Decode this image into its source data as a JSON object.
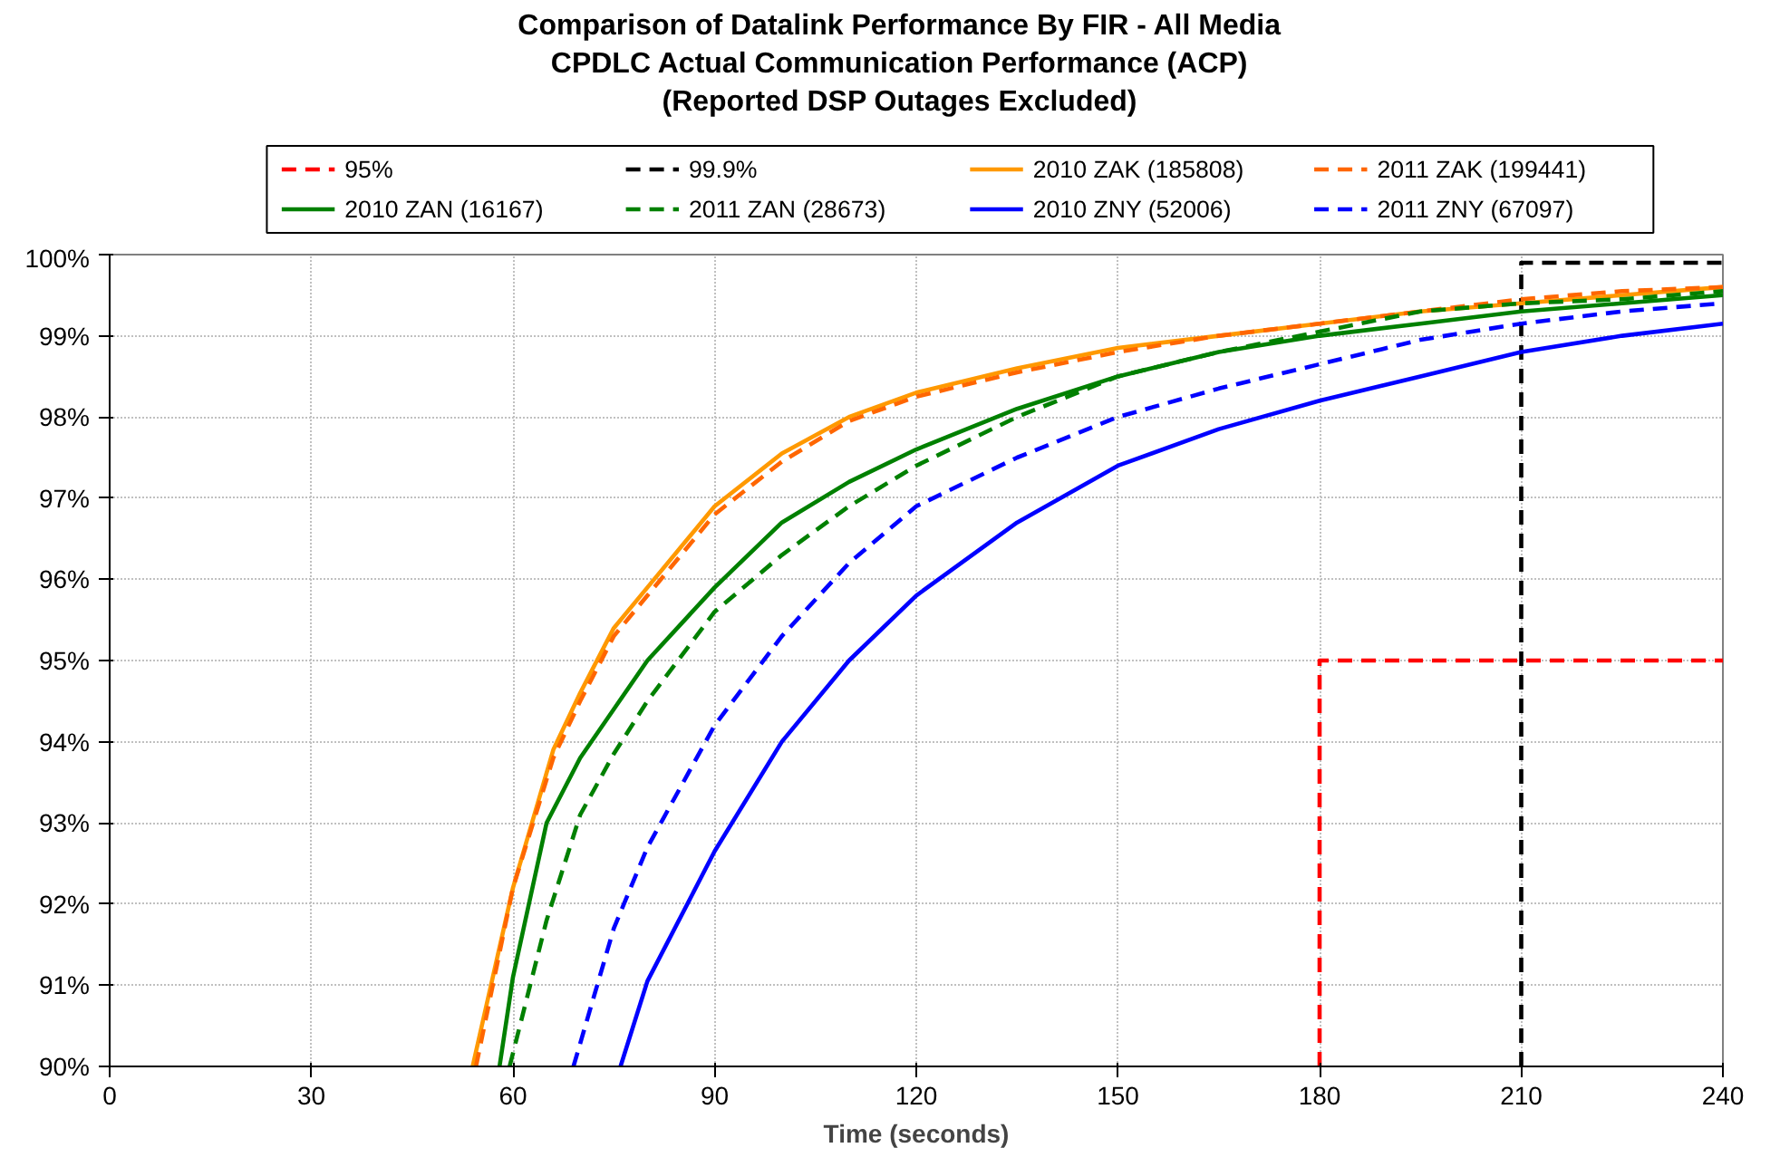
{
  "chart_data": {
    "type": "line",
    "title": "Comparison of Datalink Performance By FIR - All Media\nCPDLC Actual Communication Performance (ACP)\n(Reported DSP Outages Excluded)",
    "xlabel": "Time (seconds)",
    "xlim": [
      0,
      240
    ],
    "xticks": [
      0,
      30,
      60,
      90,
      120,
      150,
      180,
      210,
      240
    ],
    "ylim": [
      90,
      100
    ],
    "yticks": [
      {
        "value": 90,
        "label": "90%"
      },
      {
        "value": 91,
        "label": "91%"
      },
      {
        "value": 92,
        "label": "92%"
      },
      {
        "value": 93,
        "label": "93%"
      },
      {
        "value": 94,
        "label": "94%"
      },
      {
        "value": 95,
        "label": "95%"
      },
      {
        "value": 96,
        "label": "96%"
      },
      {
        "value": 97,
        "label": "97%"
      },
      {
        "value": 98,
        "label": "98%"
      },
      {
        "value": 99,
        "label": "99%"
      },
      {
        "value": 100,
        "label": "100%"
      }
    ],
    "grid": true,
    "legend": "top",
    "marker": "none",
    "series": [
      {
        "name": "95%",
        "color": "#ff0000",
        "line_style": "dashed",
        "x": [
          180,
          180,
          240
        ],
        "values": [
          90,
          95,
          95
        ]
      },
      {
        "name": "99.9%",
        "color": "#000000",
        "line_style": "dashed",
        "x": [
          210,
          210,
          240
        ],
        "values": [
          90,
          99.9,
          99.9
        ]
      },
      {
        "name": "2010 ZAK (185808)",
        "color": "#ff9900",
        "line_style": "solid",
        "x": [
          54,
          60,
          66,
          70,
          75,
          80,
          90,
          100,
          110,
          120,
          135,
          150,
          165,
          180,
          195,
          210,
          225,
          240
        ],
        "values": [
          90,
          92.2,
          93.9,
          94.6,
          95.4,
          95.9,
          96.9,
          97.55,
          98.0,
          98.3,
          98.6,
          98.85,
          99.0,
          99.15,
          99.3,
          99.4,
          99.5,
          99.6
        ]
      },
      {
        "name": "2011 ZAK (199441)",
        "color": "#ff6600",
        "line_style": "dashed",
        "x": [
          54.5,
          60,
          66,
          70,
          75,
          80,
          90,
          100,
          110,
          120,
          135,
          150,
          165,
          180,
          195,
          210,
          225,
          240
        ],
        "values": [
          90,
          92.2,
          93.8,
          94.5,
          95.3,
          95.8,
          96.8,
          97.45,
          97.95,
          98.25,
          98.55,
          98.8,
          99.0,
          99.15,
          99.3,
          99.45,
          99.55,
          99.6
        ]
      },
      {
        "name": "2010 ZAN (16167)",
        "color": "#008000",
        "line_style": "solid",
        "x": [
          58,
          60,
          65,
          70,
          75,
          80,
          90,
          100,
          110,
          120,
          135,
          150,
          165,
          180,
          195,
          210,
          225,
          240
        ],
        "values": [
          90,
          91.1,
          93.0,
          93.8,
          94.4,
          95.0,
          95.9,
          96.7,
          97.2,
          97.6,
          98.1,
          98.5,
          98.8,
          99.0,
          99.15,
          99.3,
          99.4,
          99.5
        ]
      },
      {
        "name": "2011 ZAN (28673)",
        "color": "#008000",
        "line_style": "dashed",
        "x": [
          59.5,
          65,
          70,
          75,
          80,
          90,
          100,
          110,
          120,
          135,
          150,
          165,
          180,
          195,
          210,
          225,
          240
        ],
        "values": [
          90,
          91.8,
          93.1,
          93.85,
          94.5,
          95.6,
          96.3,
          96.9,
          97.4,
          98.0,
          98.5,
          98.8,
          99.05,
          99.3,
          99.4,
          99.45,
          99.55
        ]
      },
      {
        "name": "2010 ZNY (52006)",
        "color": "#0000ff",
        "line_style": "solid",
        "x": [
          76,
          80,
          90,
          100,
          110,
          120,
          135,
          150,
          165,
          180,
          195,
          210,
          225,
          240
        ],
        "values": [
          90,
          91.05,
          92.65,
          94.0,
          95.0,
          95.8,
          96.7,
          97.4,
          97.85,
          98.2,
          98.5,
          98.8,
          99.0,
          99.15
        ]
      },
      {
        "name": "2011 ZNY (67097)",
        "color": "#0000ff",
        "line_style": "dashed",
        "x": [
          69,
          75,
          80,
          90,
          100,
          110,
          120,
          135,
          150,
          165,
          180,
          195,
          210,
          225,
          240
        ],
        "values": [
          90,
          91.7,
          92.7,
          94.2,
          95.3,
          96.2,
          96.9,
          97.5,
          98.0,
          98.35,
          98.65,
          98.95,
          99.15,
          99.3,
          99.4
        ]
      }
    ]
  }
}
